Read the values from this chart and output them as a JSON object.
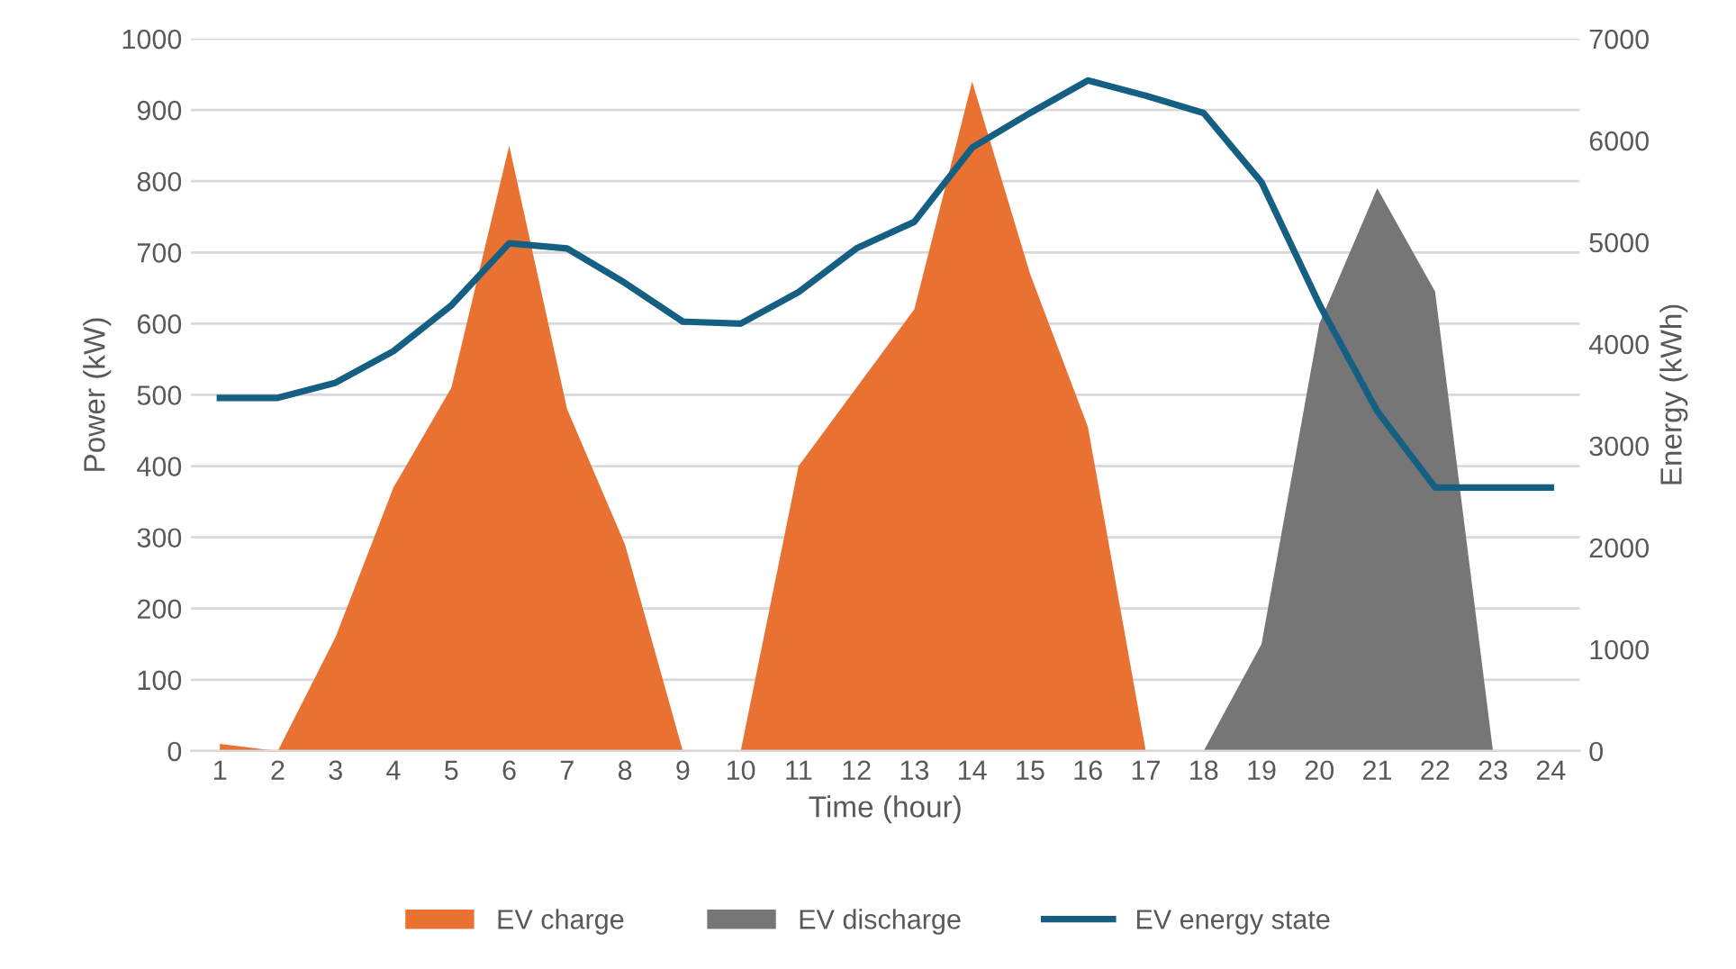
{
  "chart_data": {
    "type": "area",
    "xlabel": "Time (hour)",
    "ylabel": "Power (kW)",
    "y2label": "Energy (kWh)",
    "categories": [
      "1",
      "2",
      "3",
      "4",
      "5",
      "6",
      "7",
      "8",
      "9",
      "10",
      "11",
      "12",
      "13",
      "14",
      "15",
      "16",
      "17",
      "18",
      "19",
      "20",
      "21",
      "22",
      "23",
      "24"
    ],
    "series": [
      {
        "name": "EV charge",
        "color": "#e97132",
        "values": [
          10,
          0,
          160,
          370,
          510,
          850,
          480,
          290,
          0,
          0,
          400,
          510,
          620,
          940,
          670,
          455,
          0,
          0,
          0,
          0,
          0,
          0,
          0,
          0
        ]
      },
      {
        "name": "EV discharge",
        "color": "#767676",
        "values": [
          0,
          0,
          0,
          0,
          0,
          0,
          0,
          0,
          0,
          0,
          0,
          0,
          0,
          0,
          0,
          0,
          0,
          0,
          150,
          600,
          790,
          645,
          0,
          0
        ]
      },
      {
        "name": "EV energy state",
        "type": "line",
        "axis": "y2",
        "color": "#156082",
        "values": [
          3470,
          3470,
          3620,
          3930,
          4380,
          4990,
          4940,
          4600,
          4220,
          4200,
          4510,
          4940,
          5200,
          5930,
          6270,
          6590,
          6440,
          6270,
          5590,
          4390,
          3340,
          2590,
          2590,
          2590
        ]
      }
    ],
    "ylim": [
      0,
      1000
    ],
    "yticks": [
      0,
      100,
      200,
      300,
      400,
      500,
      600,
      700,
      800,
      900,
      1000
    ],
    "y2lim": [
      0,
      7000
    ],
    "y2ticks": [
      0,
      1000,
      2000,
      3000,
      4000,
      5000,
      6000,
      7000
    ],
    "grid": "y",
    "legend": "bottom",
    "marker": "none",
    "line_style": "solid"
  }
}
